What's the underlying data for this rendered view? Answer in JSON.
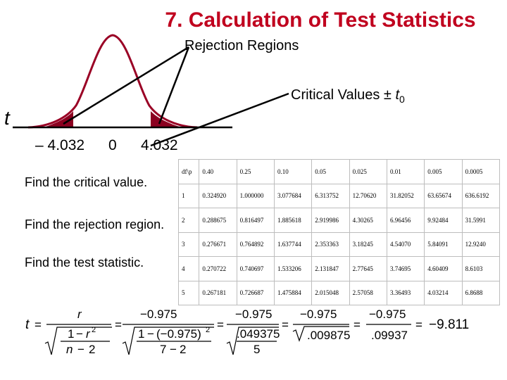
{
  "title": "7. Calculation of Test Statistics",
  "diagram": {
    "rejection_label": "Rejection Regions",
    "critical_label_text": "Critical Values ± ",
    "critical_label_var": "t",
    "critical_label_sub": "0",
    "axis_label": "t",
    "tick_neg": "– 4.032",
    "tick_zero": "0",
    "tick_pos": "4.032",
    "fill_color": "#8b0020"
  },
  "questions": [
    "Find the critical value.",
    "Find the rejection region.",
    "Find the test statistic."
  ],
  "table": {
    "header": [
      "df\\p",
      "0.40",
      "0.25",
      "0.10",
      "0.05",
      "0.025",
      "0.01",
      "0.005",
      "0.0005"
    ],
    "rows": [
      [
        "1",
        "0.324920",
        "1.000000",
        "3.077684",
        "6.313752",
        "12.70620",
        "31.82052",
        "63.65674",
        "636.6192"
      ],
      [
        "2",
        "0.288675",
        "0.816497",
        "1.885618",
        "2.919986",
        "4.30265",
        "6.96456",
        "9.92484",
        "31.5991"
      ],
      [
        "3",
        "0.276671",
        "0.764892",
        "1.637744",
        "2.353363",
        "3.18245",
        "4.54070",
        "5.84091",
        "12.9240"
      ],
      [
        "4",
        "0.270722",
        "0.740697",
        "1.533206",
        "2.131847",
        "2.77645",
        "3.74695",
        "4.60409",
        "8.6103"
      ],
      [
        "5",
        "0.267181",
        "0.726687",
        "1.475884",
        "2.015048",
        "2.57058",
        "3.36493",
        "4.03214",
        "6.8688"
      ]
    ]
  },
  "formula": {
    "t": "t",
    "eq": "=",
    "r": "r",
    "one": "1",
    "minus": "−",
    "r2_base": "r",
    "r2_exp": "2",
    "n": "n",
    "two": "2",
    "r_val": "−0.975",
    "r_val_paren": "(−0.975)",
    "seven": "7",
    "frac1_num": "−0.975",
    "frac1_den_num": ".049375",
    "frac1_den_den": "5",
    "frac2_num": "−0.975",
    "frac2_den": ".009875",
    "frac3_num": "−0.975",
    "frac3_den": ".09937",
    "result": "−9.811"
  }
}
